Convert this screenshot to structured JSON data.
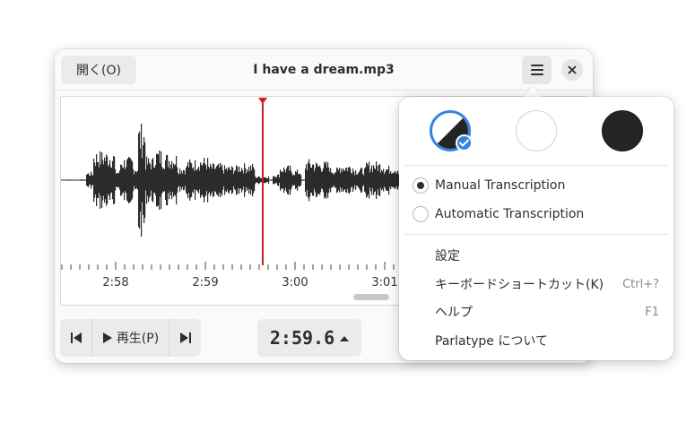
{
  "window": {
    "open_label": "開く(O)",
    "title": "I have a dream.mp3"
  },
  "timeline": {
    "ticks": [
      {
        "label": "2:58"
      },
      {
        "label": "2:59"
      },
      {
        "label": "3:00"
      },
      {
        "label": "3:01"
      }
    ]
  },
  "transport": {
    "play_label": "再生(P)",
    "time": "2:59.6"
  },
  "popover": {
    "radios": [
      {
        "label": "Manual Transcription",
        "checked": true
      },
      {
        "label": "Automatic Transcription",
        "checked": false
      }
    ],
    "menu_items": [
      {
        "label": "設定",
        "accel": ""
      },
      {
        "label": "キーボードショートカット(K)",
        "accel": "Ctrl+?"
      },
      {
        "label": "ヘルプ",
        "accel": "F1"
      },
      {
        "label": "Parlatype について",
        "accel": ""
      }
    ]
  },
  "colors": {
    "accent": "#3584e4",
    "playhead": "#cc1f1f",
    "waveform": "#2b2b2b"
  }
}
